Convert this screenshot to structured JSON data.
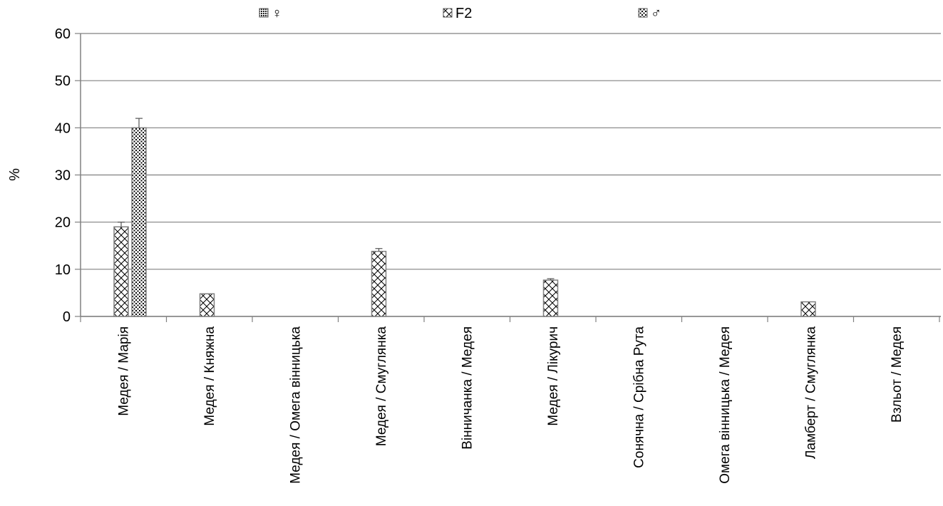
{
  "chart_data": {
    "type": "bar",
    "title": "",
    "xlabel": "",
    "ylabel": "%",
    "ylim": [
      0,
      60
    ],
    "yticks": [
      0,
      10,
      20,
      30,
      40,
      50,
      60
    ],
    "grid": true,
    "legend_position": "top",
    "categories": [
      "Медея / Марія",
      "Медея / Княжна",
      "Медея / Омега вінницька",
      "Медея / Смуглянка",
      "Вінничанка / Медея",
      "Медея / Лікурич",
      "Сонячна / Срібна Рута",
      "Омега вінницька / Медея",
      "Ламберт / Смуглянка",
      "Взльот / Медея"
    ],
    "series": [
      {
        "name": "♀",
        "pattern": "dense-dots",
        "values": [
          0,
          0,
          0,
          0,
          0,
          0,
          0,
          0,
          0,
          0
        ],
        "errors": [
          0,
          0,
          0,
          0,
          0,
          0,
          0,
          0,
          0,
          0
        ]
      },
      {
        "name": "F2",
        "pattern": "crosshatch",
        "values": [
          19,
          4.8,
          0,
          13.8,
          0,
          7.7,
          0,
          0,
          3.1,
          0
        ],
        "errors": [
          1,
          0,
          0,
          0.6,
          0,
          0.3,
          0,
          0,
          0,
          0
        ]
      },
      {
        "name": "♂",
        "pattern": "checker-dots",
        "values": [
          40,
          0,
          0,
          0,
          0,
          0,
          0,
          0,
          0,
          0
        ],
        "errors": [
          2,
          0,
          0,
          0,
          0,
          0,
          0,
          0,
          0,
          0
        ]
      }
    ],
    "colors": {
      "axis": "#808080",
      "grid": "#808080",
      "bar_stroke": "#808080",
      "error": "#555555"
    }
  }
}
